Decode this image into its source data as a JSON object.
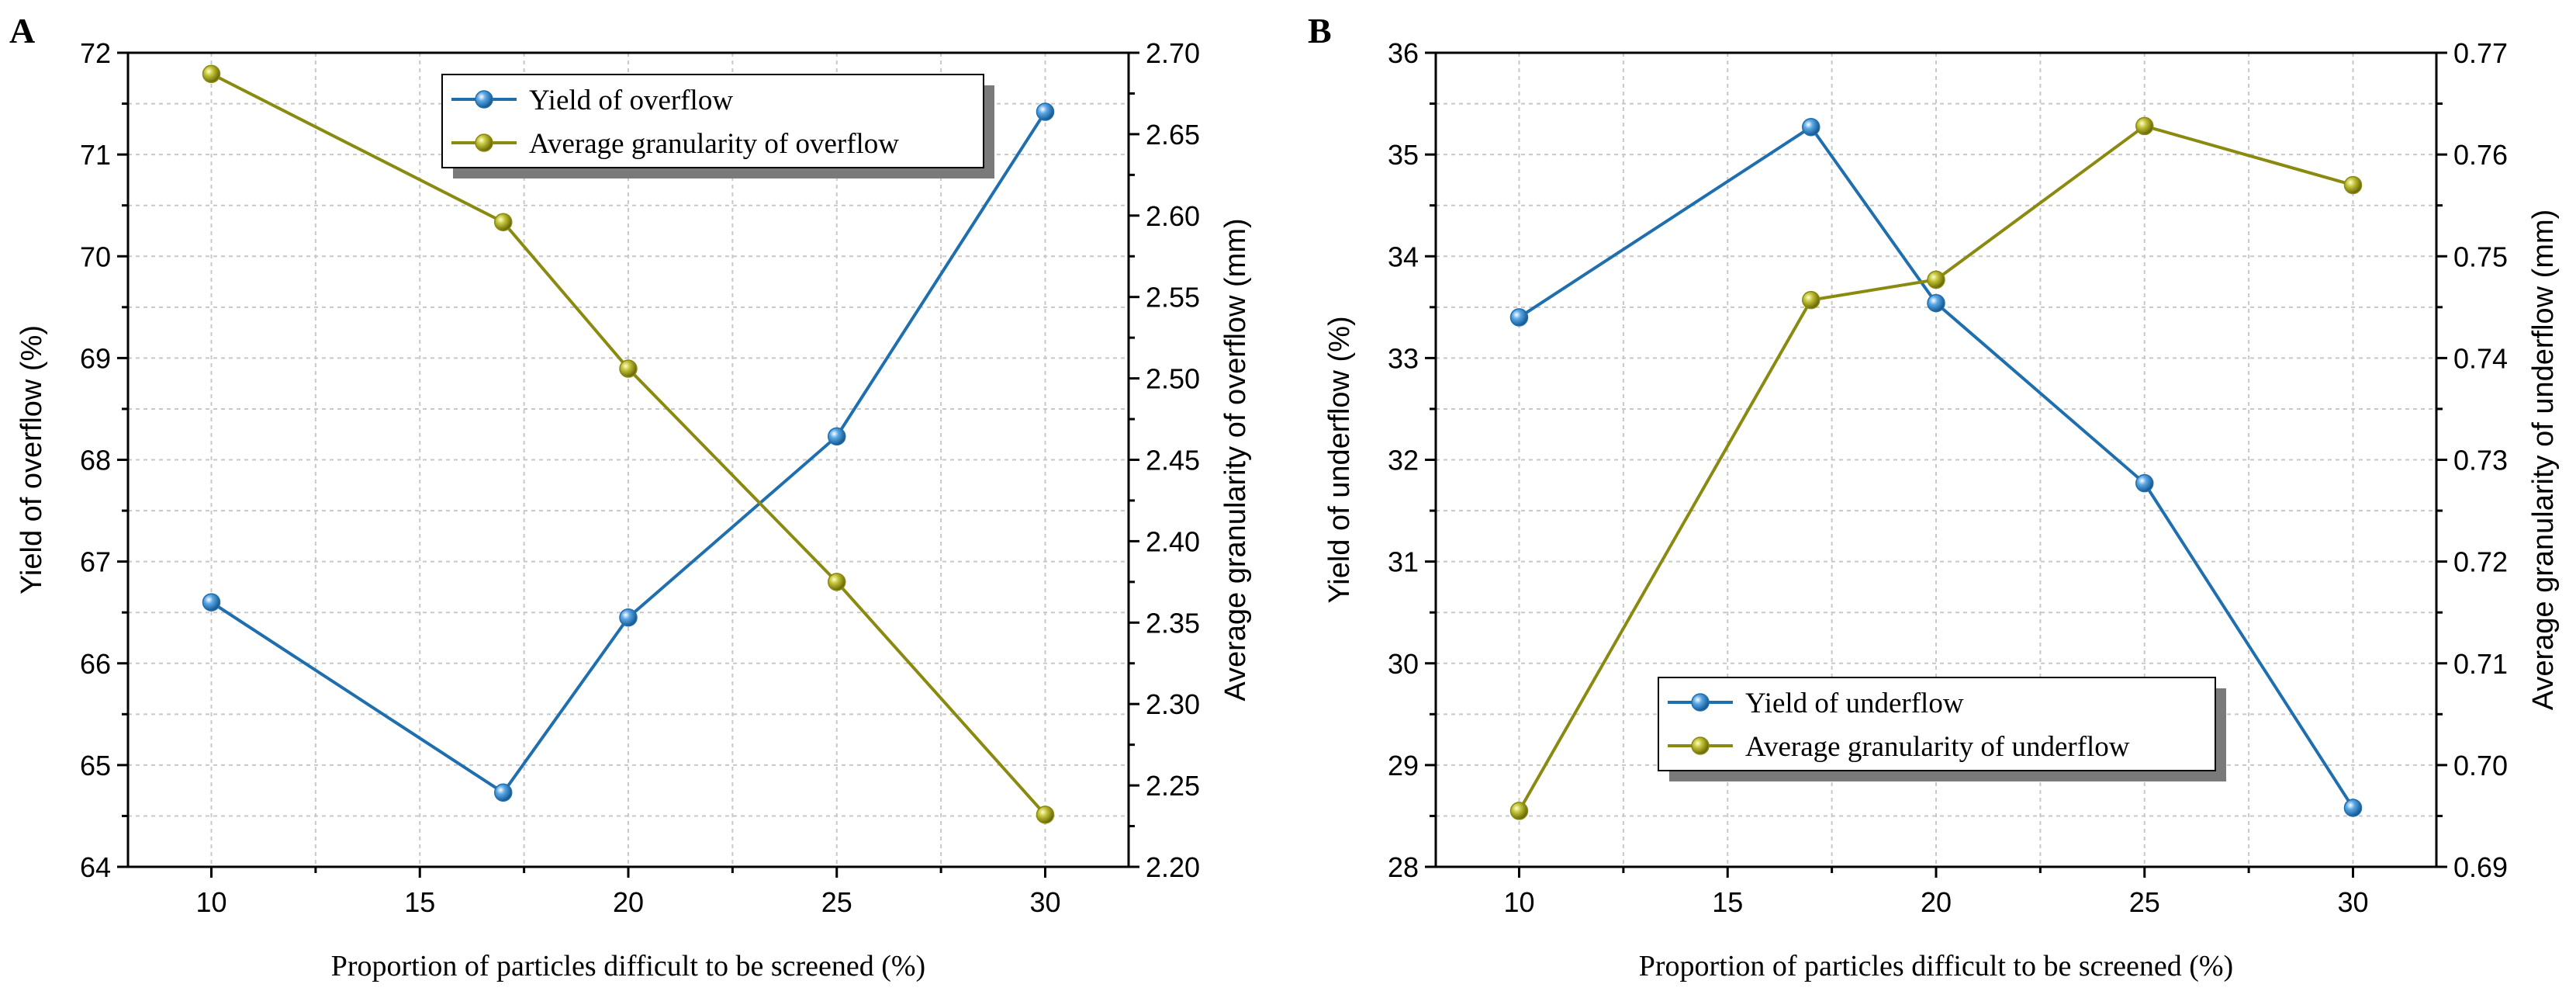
{
  "chart_data": [
    {
      "type": "line",
      "panel_label": "A",
      "x": [
        10,
        17,
        20,
        25,
        30
      ],
      "xlim": [
        8,
        32
      ],
      "xticks": [
        10,
        15,
        20,
        25,
        30
      ],
      "xlabel": "Proportion of particles difficult to be screened (%)",
      "ylabel_left": "Yield of overflow (%)",
      "ylabel_right": "Average granularity of overflow (mm)",
      "ylim_left": [
        64,
        72
      ],
      "yticks_left": [
        64,
        65,
        66,
        67,
        68,
        69,
        70,
        71,
        72
      ],
      "ylim_right": [
        2.2,
        2.7
      ],
      "yticks_right": [
        "2.20",
        "2.25",
        "2.30",
        "2.35",
        "2.40",
        "2.45",
        "2.50",
        "2.55",
        "2.60",
        "2.65",
        "2.70"
      ],
      "grid": true,
      "legend_position": "top-center",
      "series": [
        {
          "name": "Yield of overflow",
          "axis": "left",
          "color": "#1f6fae",
          "values": [
            66.6,
            64.73,
            66.45,
            68.23,
            71.42
          ]
        },
        {
          "name": "Average granularity of overflow",
          "axis": "right",
          "color": "#8a8a10",
          "values": [
            2.687,
            2.596,
            2.506,
            2.375,
            2.232
          ]
        }
      ]
    },
    {
      "type": "line",
      "panel_label": "B",
      "x": [
        10,
        17,
        20,
        25,
        30
      ],
      "xlim": [
        8,
        32
      ],
      "xticks": [
        10,
        15,
        20,
        25,
        30
      ],
      "xlabel": "Proportion of particles difficult to be screened (%)",
      "ylabel_left": "Yield of underflow  (%)",
      "ylabel_right": "Average granularity of underflow (mm)",
      "ylim_left": [
        28,
        36
      ],
      "yticks_left": [
        28,
        29,
        30,
        31,
        32,
        33,
        34,
        35,
        36
      ],
      "ylim_right": [
        0.69,
        0.77
      ],
      "yticks_right": [
        "0.69",
        "0.70",
        "0.71",
        "0.72",
        "0.73",
        "0.74",
        "0.75",
        "0.76",
        "0.77"
      ],
      "grid": true,
      "legend_position": "bottom-center",
      "series": [
        {
          "name": "Yield of underflow",
          "axis": "left",
          "color": "#1f6fae",
          "values": [
            33.4,
            35.27,
            33.54,
            31.77,
            28.58
          ]
        },
        {
          "name": "Average granularity of underflow",
          "axis": "right",
          "color": "#8a8a10",
          "values": [
            0.6955,
            0.7457,
            0.7477,
            0.7628,
            0.757
          ]
        }
      ]
    }
  ]
}
